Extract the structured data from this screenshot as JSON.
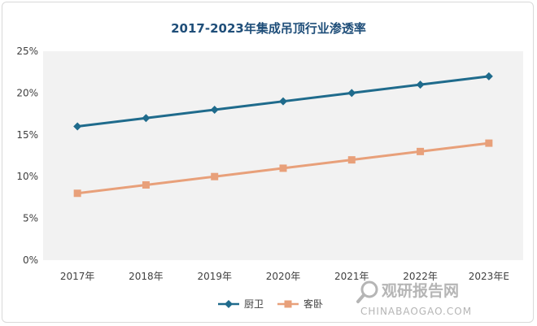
{
  "chart_data": {
    "type": "line",
    "title": "2017-2023年集成吊顶行业渗透率",
    "categories": [
      "2017年",
      "2018年",
      "2019年",
      "2020年",
      "2021年",
      "2022年",
      "2023年E"
    ],
    "y_ticks": [
      "0%",
      "5%",
      "10%",
      "15%",
      "20%",
      "25%"
    ],
    "ylim": [
      0,
      25
    ],
    "y_unit": "%",
    "grid": false,
    "legend_position": "bottom",
    "series": [
      {
        "name": "厨卫",
        "values": [
          16,
          17,
          18,
          19,
          20,
          21,
          22
        ],
        "color": "#1f6b8c",
        "marker": "diamond"
      },
      {
        "name": "客卧",
        "values": [
          8,
          9,
          10,
          11,
          12,
          13,
          14
        ],
        "color": "#e8a07a",
        "marker": "square"
      }
    ]
  },
  "watermark": {
    "text_cn": "观研报告网",
    "text_en": "CHINABAOGAO.COM",
    "icon": "magnifier-logo-icon"
  },
  "colors": {
    "title": "#1f4e79",
    "plot_background": "#f2f2f2",
    "axis_text": "#404040"
  }
}
